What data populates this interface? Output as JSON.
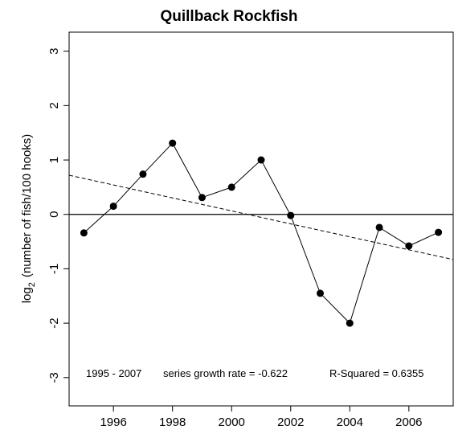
{
  "chart_data": {
    "type": "line",
    "title": "Quillback Rockfish",
    "y_label": {
      "base": "log",
      "subscript": "2",
      "rest": "(number of fish/100 hooks)"
    },
    "x": [
      1995,
      1996,
      1997,
      1998,
      1999,
      2000,
      2001,
      2002,
      2003,
      2004,
      2005,
      2006,
      2007
    ],
    "values": [
      -0.34,
      0.15,
      0.74,
      1.31,
      0.31,
      0.5,
      1.0,
      -0.02,
      -1.45,
      -2.0,
      -0.24,
      -0.58,
      -0.33
    ],
    "color": "#000000",
    "trend": {
      "x": [
        1994.5,
        2007.5
      ],
      "values": [
        0.72,
        -0.83
      ]
    },
    "reference_line": 0,
    "xlim": [
      1994.5,
      2007.5
    ],
    "xticks": [
      1996,
      1998,
      2000,
      2002,
      2004,
      2006
    ],
    "ylim": [
      -3.52,
      3.35
    ],
    "yticks": [
      -3,
      -2,
      -1,
      0,
      1,
      2,
      3
    ],
    "annotations": [
      "1995 - 2007",
      "series growth rate =  -0.622",
      "R-Squared = 0.6355"
    ]
  }
}
